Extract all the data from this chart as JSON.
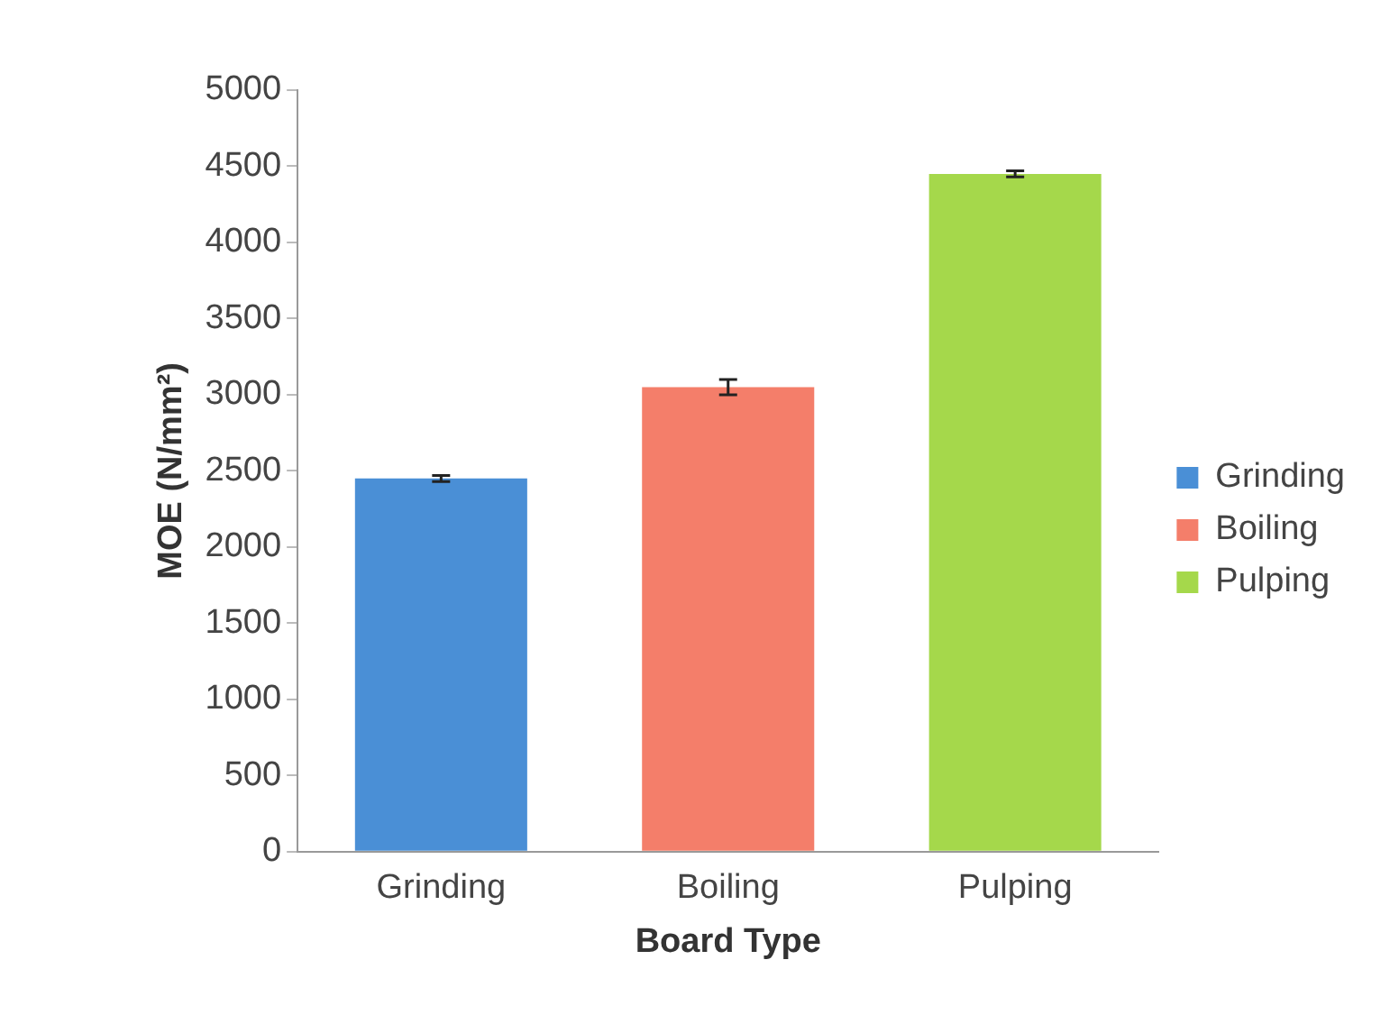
{
  "chart_data": {
    "type": "bar",
    "xlabel": "Board Type",
    "ylabel": "MOE (N/mm²)",
    "categories": [
      "Grinding",
      "Boiling",
      "Pulping"
    ],
    "series": [
      {
        "name": "Grinding",
        "color": "#4a8fd6",
        "values": [
          2450,
          null,
          null
        ],
        "errors": [
          20,
          null,
          null
        ]
      },
      {
        "name": "Boiling",
        "color": "#f47e6a",
        "values": [
          null,
          3050,
          null
        ],
        "errors": [
          null,
          50,
          null
        ]
      },
      {
        "name": "Pulping",
        "color": "#a5d84b",
        "values": [
          null,
          null,
          4450
        ],
        "errors": [
          null,
          null,
          20
        ]
      }
    ],
    "ylim": [
      0,
      5000
    ],
    "yticks": [
      0,
      500,
      1000,
      1500,
      2000,
      2500,
      3000,
      3500,
      4000,
      4500,
      5000
    ],
    "grid": false,
    "legend": "right"
  }
}
